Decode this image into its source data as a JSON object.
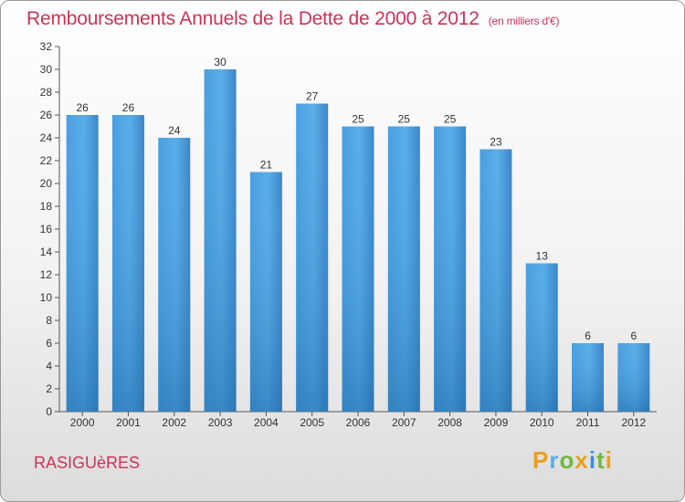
{
  "header": {
    "title": "Remboursements Annuels de la Dette de 2000 à 2012",
    "unit": "(en milliers d'€)"
  },
  "footer": {
    "commune": "RASIGUèRES",
    "logo": [
      "P",
      "r",
      "o",
      "x",
      "i",
      "t",
      "i"
    ]
  },
  "colors": {
    "bar": "#3d8fd4",
    "barTop": "#5aaee8",
    "title": "#cc3355",
    "grid": "#cccccc"
  },
  "chart_data": {
    "type": "bar",
    "title": "Remboursements Annuels de la Dette de 2000 à 2012",
    "ylabel": "(en milliers d'€)",
    "categories": [
      "2000",
      "2001",
      "2002",
      "2003",
      "2004",
      "2005",
      "2006",
      "2007",
      "2008",
      "2009",
      "2010",
      "2011",
      "2012"
    ],
    "values": [
      26,
      26,
      24,
      30,
      21,
      27,
      25,
      25,
      25,
      23,
      13,
      6,
      6
    ],
    "ylim": [
      0,
      32
    ],
    "yticks": [
      0,
      2,
      4,
      6,
      8,
      10,
      12,
      14,
      16,
      18,
      20,
      22,
      24,
      26,
      28,
      30,
      32
    ],
    "grid": false,
    "value_labels": true
  }
}
